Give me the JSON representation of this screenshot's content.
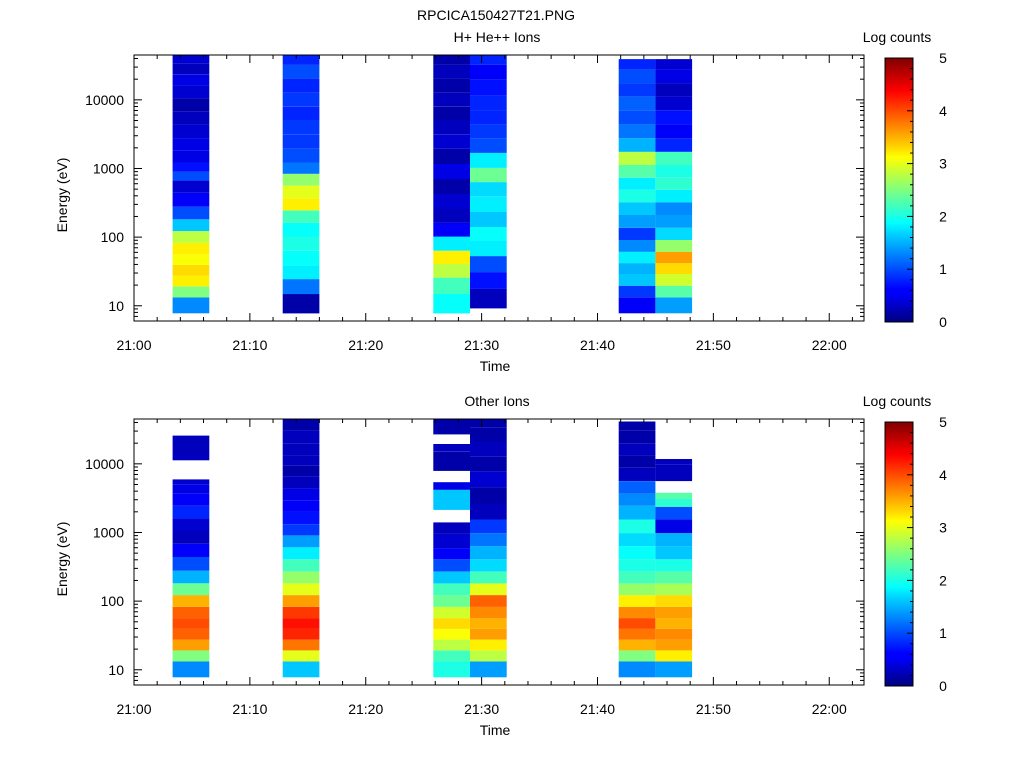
{
  "figure": {
    "title": "RPCICA150427T21.PNG"
  },
  "chart_data": [
    {
      "type": "heatmap",
      "title": "H+ He++ Ions",
      "xlabel": "Time",
      "ylabel": "Energy (eV)",
      "y_scale": "log",
      "ylim": [
        6,
        45000
      ],
      "x_range": [
        "21:00",
        "22:03"
      ],
      "x_ticks": [
        "21:00",
        "21:10",
        "21:20",
        "21:30",
        "21:40",
        "21:50",
        "22:00"
      ],
      "y_ticks": [
        "10",
        "100",
        "1000",
        "10000"
      ],
      "colorbar": {
        "label": "Log counts",
        "range": [
          0,
          5
        ],
        "ticks": [
          "0",
          "1",
          "2",
          "3",
          "4",
          "5"
        ],
        "colormap": "jet"
      },
      "columns": [
        {
          "start": "21:03:20",
          "end": "21:06:30",
          "bins": [
            [
              11,
              1.3
            ],
            [
              16,
              2.5
            ],
            [
              23,
              3.2
            ],
            [
              33,
              3.3
            ],
            [
              47,
              3.1
            ],
            [
              68,
              3.2
            ],
            [
              100,
              2.8
            ],
            [
              150,
              1.6
            ],
            [
              220,
              1.0
            ],
            [
              350,
              0.6
            ],
            [
              560,
              0.4
            ],
            [
              800,
              1.0
            ],
            [
              1000,
              0.7
            ],
            [
              1500,
              0.5
            ],
            [
              2200,
              0.5
            ],
            [
              3500,
              0.4
            ],
            [
              5500,
              0.3
            ],
            [
              8500,
              0.2
            ],
            [
              13000,
              0.4
            ],
            [
              20000,
              0.5
            ],
            [
              28000,
              0.3
            ],
            [
              40000,
              0.4
            ]
          ]
        },
        {
          "start": "21:12:50",
          "end": "21:16:00",
          "bins": [
            [
              11,
              0.2
            ],
            [
              20,
              1.2
            ],
            [
              30,
              1.8
            ],
            [
              50,
              1.9
            ],
            [
              80,
              2.0
            ],
            [
              130,
              1.9
            ],
            [
              200,
              2.2
            ],
            [
              300,
              3.2
            ],
            [
              450,
              3.0
            ],
            [
              700,
              2.6
            ],
            [
              1000,
              1.2
            ],
            [
              1500,
              1.0
            ],
            [
              2500,
              0.9
            ],
            [
              4000,
              0.9
            ],
            [
              6500,
              0.8
            ],
            [
              10000,
              0.9
            ],
            [
              16000,
              0.8
            ],
            [
              26000,
              1.0
            ],
            [
              40000,
              0.8
            ]
          ]
        },
        {
          "start": "21:25:50",
          "end": "21:29:00",
          "bins": [
            [
              11,
              1.9
            ],
            [
              20,
              2.2
            ],
            [
              33,
              2.8
            ],
            [
              50,
              3.2
            ],
            [
              80,
              1.8
            ],
            [
              130,
              0.6
            ],
            [
              200,
              0.3
            ],
            [
              330,
              0.4
            ],
            [
              550,
              0.2
            ],
            [
              900,
              0.5
            ],
            [
              1500,
              0.2
            ],
            [
              2500,
              0.4
            ],
            [
              4000,
              0.3
            ],
            [
              6500,
              0.2
            ],
            [
              10000,
              0.3
            ],
            [
              16000,
              0.2
            ],
            [
              26000,
              0.3
            ],
            [
              40000,
              0.2
            ]
          ]
        },
        {
          "start": "21:29:00",
          "end": "21:32:10",
          "bins": [
            [
              13,
              0.3
            ],
            [
              24,
              0.7
            ],
            [
              40,
              1.0
            ],
            [
              70,
              1.8
            ],
            [
              110,
              1.9
            ],
            [
              180,
              1.6
            ],
            [
              300,
              1.8
            ],
            [
              500,
              1.7
            ],
            [
              800,
              2.4
            ],
            [
              1300,
              1.8
            ],
            [
              2200,
              1.0
            ],
            [
              3500,
              0.9
            ],
            [
              5500,
              0.8
            ],
            [
              9000,
              0.8
            ],
            [
              15000,
              0.7
            ],
            [
              26000,
              0.6
            ],
            [
              40000,
              0.8
            ]
          ]
        },
        {
          "start": "21:41:50",
          "end": "21:45:00",
          "bins": [
            [
              11,
              0.6
            ],
            [
              16,
              0.9
            ],
            [
              24,
              1.6
            ],
            [
              35,
              1.5
            ],
            [
              50,
              1.8
            ],
            [
              75,
              1.3
            ],
            [
              110,
              0.9
            ],
            [
              170,
              1.4
            ],
            [
              260,
              1.6
            ],
            [
              400,
              2.0
            ],
            [
              600,
              1.8
            ],
            [
              900,
              2.3
            ],
            [
              1400,
              2.8
            ],
            [
              2200,
              1.5
            ],
            [
              3500,
              1.2
            ],
            [
              5500,
              1.0
            ],
            [
              9000,
              1.1
            ],
            [
              14000,
              0.9
            ],
            [
              22000,
              1.0
            ],
            [
              35000,
              0.8
            ]
          ]
        },
        {
          "start": "21:45:00",
          "end": "21:48:10",
          "bins": [
            [
              11,
              1.4
            ],
            [
              16,
              2.3
            ],
            [
              24,
              2.9
            ],
            [
              35,
              3.3
            ],
            [
              50,
              3.6
            ],
            [
              75,
              2.6
            ],
            [
              110,
              1.7
            ],
            [
              170,
              1.4
            ],
            [
              260,
              1.3
            ],
            [
              400,
              1.8
            ],
            [
              600,
              2.1
            ],
            [
              900,
              2.0
            ],
            [
              1400,
              2.2
            ],
            [
              2200,
              0.8
            ],
            [
              3500,
              0.6
            ],
            [
              5500,
              0.7
            ],
            [
              9000,
              0.4
            ],
            [
              14000,
              0.3
            ],
            [
              22000,
              0.5
            ],
            [
              35000,
              0.4
            ]
          ]
        }
      ]
    },
    {
      "type": "heatmap",
      "title": "Other Ions",
      "xlabel": "Time",
      "ylabel": "Energy (eV)",
      "y_scale": "log",
      "ylim": [
        6,
        45000
      ],
      "x_range": [
        "21:00",
        "22:03"
      ],
      "x_ticks": [
        "21:00",
        "21:10",
        "21:20",
        "21:30",
        "21:40",
        "21:50",
        "22:00"
      ],
      "y_ticks": [
        "10",
        "100",
        "1000",
        "10000"
      ],
      "colorbar": {
        "label": "Log counts",
        "range": [
          0,
          5
        ],
        "ticks": [
          "0",
          "1",
          "2",
          "3",
          "4",
          "5"
        ],
        "colormap": "jet"
      },
      "columns": [
        {
          "start": "21:03:20",
          "end": "21:06:30",
          "bins": [
            [
              11,
              1.3
            ],
            [
              16,
              2.5
            ],
            [
              23,
              3.6
            ],
            [
              33,
              3.9
            ],
            [
              47,
              4.0
            ],
            [
              68,
              3.9
            ],
            [
              100,
              3.5
            ],
            [
              150,
              2.4
            ],
            [
              220,
              1.5
            ],
            [
              350,
              1.0
            ],
            [
              550,
              0.6
            ],
            [
              850,
              0.3
            ],
            [
              1300,
              0.4
            ],
            [
              2000,
              0.8
            ],
            [
              3000,
              0.6
            ],
            [
              4500,
              0.5
            ],
            [
              5500,
              0.4
            ],
            [
              23000,
              0.3
            ]
          ]
        },
        {
          "start": "21:12:50",
          "end": "21:16:00",
          "bins": [
            [
              11,
              1.6
            ],
            [
              16,
              3.0
            ],
            [
              23,
              3.8
            ],
            [
              33,
              4.2
            ],
            [
              47,
              4.3
            ],
            [
              68,
              4.1
            ],
            [
              100,
              3.6
            ],
            [
              150,
              3.0
            ],
            [
              220,
              2.6
            ],
            [
              330,
              2.2
            ],
            [
              500,
              1.8
            ],
            [
              750,
              1.4
            ],
            [
              1100,
              0.9
            ],
            [
              1600,
              0.7
            ],
            [
              2500,
              0.6
            ],
            [
              3500,
              0.5
            ],
            [
              5500,
              0.3
            ],
            [
              8000,
              0.2
            ],
            [
              11000,
              0.3
            ],
            [
              16000,
              0.3
            ],
            [
              24000,
              0.3
            ],
            [
              40000,
              0.2
            ]
          ]
        },
        {
          "start": "21:25:50",
          "end": "21:29:00",
          "bins": [
            [
              11,
              2.0
            ],
            [
              16,
              2.2
            ],
            [
              23,
              2.8
            ],
            [
              33,
              3.1
            ],
            [
              47,
              3.3
            ],
            [
              68,
              2.9
            ],
            [
              100,
              2.4
            ],
            [
              150,
              2.2
            ],
            [
              220,
              1.6
            ],
            [
              330,
              1.0
            ],
            [
              500,
              0.6
            ],
            [
              700,
              0.4
            ],
            [
              1300,
              0.3
            ],
            [
              3500,
              1.6
            ],
            [
              5000,
              0.5
            ],
            [
              12500,
              0.2
            ],
            [
              18000,
              0.3
            ],
            [
              40000,
              0.2
            ]
          ]
        },
        {
          "start": "21:29:00",
          "end": "21:32:10",
          "bins": [
            [
              11,
              1.4
            ],
            [
              16,
              2.8
            ],
            [
              23,
              3.2
            ],
            [
              33,
              3.6
            ],
            [
              47,
              3.5
            ],
            [
              68,
              3.7
            ],
            [
              100,
              3.9
            ],
            [
              150,
              3.0
            ],
            [
              220,
              2.2
            ],
            [
              330,
              1.7
            ],
            [
              500,
              1.5
            ],
            [
              800,
              1.2
            ],
            [
              1200,
              0.9
            ],
            [
              2000,
              0.3
            ],
            [
              3500,
              0.2
            ],
            [
              6000,
              0.4
            ],
            [
              10000,
              0.2
            ],
            [
              16000,
              0.3
            ],
            [
              28000,
              0.2
            ],
            [
              40000,
              0.2
            ]
          ]
        },
        {
          "start": "21:41:50",
          "end": "21:45:00",
          "bins": [
            [
              11,
              1.3
            ],
            [
              16,
              2.5
            ],
            [
              23,
              3.5
            ],
            [
              33,
              3.8
            ],
            [
              47,
              4.0
            ],
            [
              68,
              3.7
            ],
            [
              100,
              3.2
            ],
            [
              150,
              2.6
            ],
            [
              220,
              2.2
            ],
            [
              330,
              2.0
            ],
            [
              500,
              1.9
            ],
            [
              800,
              1.7
            ],
            [
              1200,
              2.0
            ],
            [
              2000,
              1.5
            ],
            [
              3000,
              1.3
            ],
            [
              4500,
              1.1
            ],
            [
              7000,
              0.3
            ],
            [
              11000,
              0.2
            ],
            [
              16000,
              0.3
            ],
            [
              25000,
              0.2
            ],
            [
              37000,
              0.2
            ]
          ]
        },
        {
          "start": "21:45:00",
          "end": "21:48:10",
          "bins": [
            [
              11,
              1.4
            ],
            [
              16,
              3.2
            ],
            [
              23,
              3.6
            ],
            [
              33,
              3.7
            ],
            [
              47,
              3.5
            ],
            [
              68,
              3.6
            ],
            [
              100,
              3.3
            ],
            [
              150,
              2.7
            ],
            [
              220,
              2.3
            ],
            [
              330,
              2.0
            ],
            [
              500,
              1.6
            ],
            [
              800,
              1.5
            ],
            [
              1200,
              0.5
            ],
            [
              2000,
              1.0
            ],
            [
              2800,
              2.1
            ],
            [
              3500,
              2.3
            ],
            [
              9000,
              0.3
            ],
            [
              10500,
              0.3
            ]
          ]
        }
      ]
    }
  ]
}
